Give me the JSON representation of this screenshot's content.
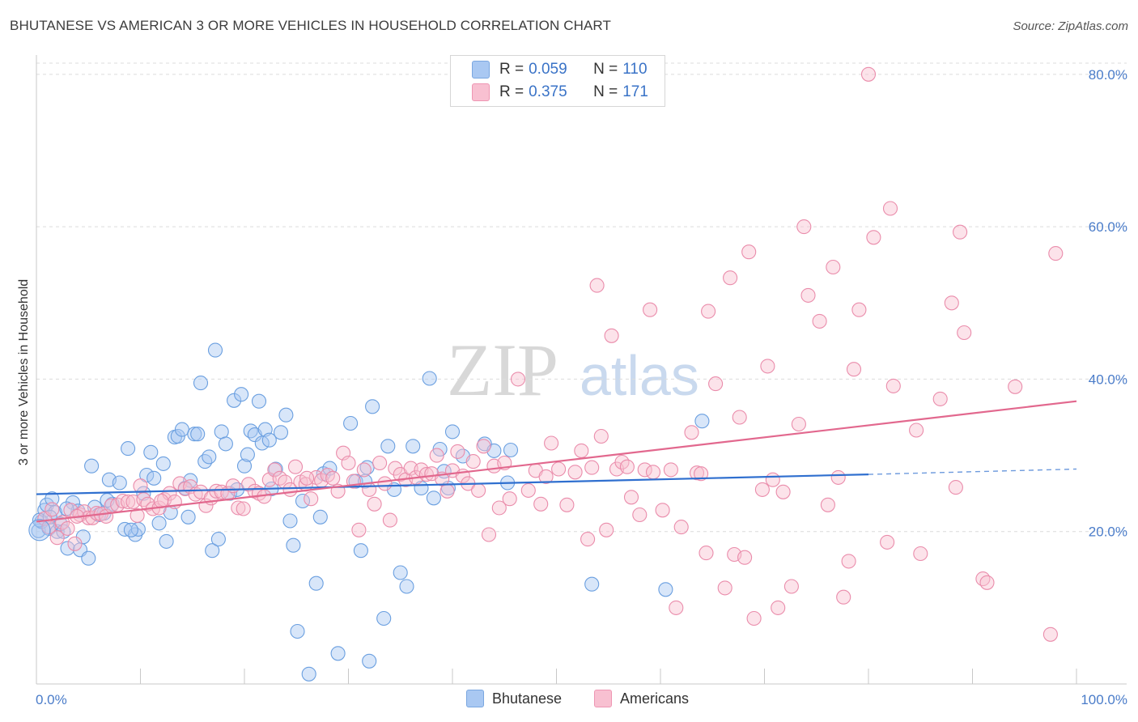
{
  "title": "BHUTANESE VS AMERICAN 3 OR MORE VEHICLES IN HOUSEHOLD CORRELATION CHART",
  "source": "Source: ZipAtlas.com",
  "watermark": {
    "zip": "ZIP",
    "atlas": "atlas"
  },
  "legend": {
    "rows": [
      {
        "r_label": "R =",
        "r": "0.059",
        "n_label": "N =",
        "n": "110",
        "fill": "#a9c8f2",
        "stroke": "#7aa7e0"
      },
      {
        "r_label": "R =",
        "r": "0.375",
        "n_label": "N =",
        "n": "171",
        "fill": "#f8c0d1",
        "stroke": "#ee96b3"
      }
    ]
  },
  "bottom_legend": [
    "Bhutanese",
    "Americans"
  ],
  "chart_data": {
    "type": "scatter",
    "title": "BHUTANESE VS AMERICAN 3 OR MORE VEHICLES IN HOUSEHOLD CORRELATION CHART",
    "xlabel": "",
    "ylabel": "3 or more Vehicles in Household",
    "xlim": [
      0,
      100
    ],
    "ylim": [
      0,
      82
    ],
    "x_tick_labels": [
      {
        "value": 0,
        "label": "0.0%"
      },
      {
        "value": 100,
        "label": "100.0%"
      }
    ],
    "y_tick_labels": [
      {
        "value": 20,
        "label": "20.0%"
      },
      {
        "value": 40,
        "label": "40.0%"
      },
      {
        "value": 60,
        "label": "60.0%"
      },
      {
        "value": 80,
        "label": "80.0%"
      }
    ],
    "grid": "horizontal dashed",
    "legend_position": "top-center",
    "series": [
      {
        "name": "Bhutanese",
        "color": "#6a9fe0",
        "fill": "#a9c8f2",
        "trend": {
          "x0": 0,
          "y0": 24.9,
          "x1": 80,
          "y1": 27.5,
          "dash_to_x": 100,
          "dash_to_y": 28.2,
          "color": "#2f6fcf"
        },
        "points": [
          [
            0.2,
            20.1
          ],
          [
            0.5,
            21.3
          ],
          [
            0.8,
            22.8
          ],
          [
            1.0,
            23.5
          ],
          [
            1.2,
            20.4
          ],
          [
            1.5,
            24.3
          ],
          [
            1.8,
            22.5
          ],
          [
            2.0,
            20.0
          ],
          [
            2.3,
            21.0
          ],
          [
            2.6,
            20.0
          ],
          [
            3.0,
            17.8
          ],
          [
            3.5,
            23.8
          ],
          [
            4.0,
            22.7
          ],
          [
            4.2,
            17.6
          ],
          [
            4.5,
            19.3
          ],
          [
            5.0,
            16.5
          ],
          [
            5.3,
            28.6
          ],
          [
            5.6,
            23.2
          ],
          [
            6.0,
            22.2
          ],
          [
            6.5,
            22.4
          ],
          [
            7.0,
            26.8
          ],
          [
            7.3,
            23.6
          ],
          [
            8.0,
            26.4
          ],
          [
            8.5,
            20.3
          ],
          [
            8.8,
            30.9
          ],
          [
            9.5,
            19.6
          ],
          [
            9.8,
            20.3
          ],
          [
            10.3,
            25.0
          ],
          [
            10.6,
            27.4
          ],
          [
            11.0,
            30.4
          ],
          [
            11.3,
            27.0
          ],
          [
            11.8,
            21.1
          ],
          [
            12.2,
            28.9
          ],
          [
            12.5,
            18.7
          ],
          [
            12.9,
            22.5
          ],
          [
            13.3,
            32.4
          ],
          [
            13.6,
            32.5
          ],
          [
            14.0,
            33.4
          ],
          [
            14.3,
            25.7
          ],
          [
            14.6,
            21.9
          ],
          [
            15.2,
            32.8
          ],
          [
            15.5,
            32.8
          ],
          [
            15.8,
            39.5
          ],
          [
            16.2,
            29.2
          ],
          [
            16.6,
            29.8
          ],
          [
            16.9,
            17.5
          ],
          [
            17.2,
            43.8
          ],
          [
            17.5,
            19.0
          ],
          [
            17.8,
            33.1
          ],
          [
            18.2,
            31.5
          ],
          [
            18.6,
            25.0
          ],
          [
            19.0,
            37.2
          ],
          [
            19.3,
            25.5
          ],
          [
            19.7,
            38.0
          ],
          [
            20.0,
            28.6
          ],
          [
            20.3,
            30.1
          ],
          [
            20.6,
            33.2
          ],
          [
            21.0,
            32.7
          ],
          [
            21.4,
            37.1
          ],
          [
            21.7,
            31.6
          ],
          [
            22.0,
            33.4
          ],
          [
            22.4,
            32.0
          ],
          [
            22.6,
            25.6
          ],
          [
            23.0,
            28.2
          ],
          [
            23.5,
            33.0
          ],
          [
            24.0,
            35.3
          ],
          [
            24.4,
            21.4
          ],
          [
            24.7,
            18.2
          ],
          [
            25.1,
            6.9
          ],
          [
            25.6,
            24.0
          ],
          [
            26.2,
            1.3
          ],
          [
            26.9,
            13.2
          ],
          [
            27.3,
            21.9
          ],
          [
            27.6,
            27.6
          ],
          [
            28.2,
            28.3
          ],
          [
            29.0,
            4.0
          ],
          [
            30.2,
            34.2
          ],
          [
            30.7,
            26.6
          ],
          [
            31.2,
            17.5
          ],
          [
            31.6,
            26.6
          ],
          [
            32.0,
            3.0
          ],
          [
            32.3,
            36.4
          ],
          [
            33.4,
            8.6
          ],
          [
            33.8,
            31.2
          ],
          [
            34.4,
            25.5
          ],
          [
            35.0,
            14.6
          ],
          [
            35.6,
            12.8
          ],
          [
            36.2,
            31.2
          ],
          [
            37.0,
            25.7
          ],
          [
            37.8,
            40.1
          ],
          [
            38.2,
            24.4
          ],
          [
            38.8,
            30.8
          ],
          [
            39.2,
            27.9
          ],
          [
            39.6,
            25.7
          ],
          [
            40.0,
            33.1
          ],
          [
            41.0,
            29.9
          ],
          [
            43.1,
            31.5
          ],
          [
            44.0,
            30.6
          ],
          [
            45.3,
            26.4
          ],
          [
            45.6,
            30.7
          ],
          [
            53.4,
            13.1
          ],
          [
            60.5,
            12.4
          ],
          [
            64.0,
            34.5
          ],
          [
            0.3,
            21.5
          ],
          [
            1.3,
            21.9
          ],
          [
            2.9,
            23.0
          ],
          [
            6.8,
            24.1
          ],
          [
            9.1,
            20.2
          ],
          [
            14.8,
            26.7
          ],
          [
            31.8,
            28.4
          ]
        ]
      },
      {
        "name": "Americans",
        "color": "#ea8cab",
        "fill": "#f8c0d1",
        "trend": {
          "x0": 0,
          "y0": 21.3,
          "x1": 100,
          "y1": 37.1,
          "color": "#e2688e"
        },
        "points": [
          [
            0.8,
            21.7
          ],
          [
            1.5,
            22.9
          ],
          [
            2.0,
            19.2
          ],
          [
            2.5,
            21.2
          ],
          [
            3.0,
            20.4
          ],
          [
            3.3,
            22.8
          ],
          [
            3.7,
            18.4
          ],
          [
            4.2,
            22.2
          ],
          [
            4.6,
            22.6
          ],
          [
            5.0,
            21.8
          ],
          [
            5.4,
            21.8
          ],
          [
            5.8,
            22.4
          ],
          [
            6.2,
            22.3
          ],
          [
            6.7,
            22.0
          ],
          [
            7.2,
            23.4
          ],
          [
            7.8,
            23.5
          ],
          [
            8.3,
            24.0
          ],
          [
            8.8,
            23.9
          ],
          [
            9.3,
            23.9
          ],
          [
            9.7,
            22.1
          ],
          [
            10.3,
            24.2
          ],
          [
            10.7,
            23.6
          ],
          [
            11.2,
            23.0
          ],
          [
            11.8,
            23.1
          ],
          [
            12.3,
            24.2
          ],
          [
            12.8,
            25.0
          ],
          [
            13.3,
            23.9
          ],
          [
            13.8,
            26.3
          ],
          [
            14.3,
            25.6
          ],
          [
            14.8,
            25.9
          ],
          [
            15.3,
            24.9
          ],
          [
            15.8,
            25.2
          ],
          [
            16.3,
            23.4
          ],
          [
            16.8,
            24.4
          ],
          [
            17.3,
            25.3
          ],
          [
            17.8,
            25.2
          ],
          [
            18.4,
            25.0
          ],
          [
            18.9,
            26.0
          ],
          [
            19.4,
            23.1
          ],
          [
            19.9,
            23.0
          ],
          [
            20.4,
            26.2
          ],
          [
            21.0,
            25.3
          ],
          [
            21.4,
            25.0
          ],
          [
            21.9,
            24.6
          ],
          [
            22.4,
            26.8
          ],
          [
            22.9,
            28.1
          ],
          [
            23.4,
            27.0
          ],
          [
            23.9,
            26.5
          ],
          [
            24.4,
            25.5
          ],
          [
            24.9,
            28.5
          ],
          [
            25.4,
            26.5
          ],
          [
            25.9,
            26.2
          ],
          [
            26.4,
            24.3
          ],
          [
            26.9,
            27.1
          ],
          [
            27.4,
            26.7
          ],
          [
            28.0,
            27.4
          ],
          [
            28.5,
            27.0
          ],
          [
            29.0,
            25.3
          ],
          [
            29.5,
            30.3
          ],
          [
            30.0,
            29.0
          ],
          [
            30.5,
            26.6
          ],
          [
            31.0,
            20.2
          ],
          [
            31.5,
            28.1
          ],
          [
            32.0,
            25.5
          ],
          [
            32.5,
            23.6
          ],
          [
            33.0,
            29.0
          ],
          [
            33.5,
            26.3
          ],
          [
            34.0,
            21.5
          ],
          [
            34.5,
            28.3
          ],
          [
            35.0,
            27.5
          ],
          [
            35.5,
            26.8
          ],
          [
            36.0,
            28.3
          ],
          [
            36.5,
            27.1
          ],
          [
            37.0,
            28.1
          ],
          [
            37.5,
            27.5
          ],
          [
            38.0,
            27.6
          ],
          [
            38.5,
            30.0
          ],
          [
            39.0,
            26.9
          ],
          [
            39.5,
            25.3
          ],
          [
            40.0,
            28.0
          ],
          [
            40.5,
            30.5
          ],
          [
            41.0,
            27.3
          ],
          [
            41.5,
            26.3
          ],
          [
            42.0,
            29.2
          ],
          [
            42.5,
            25.4
          ],
          [
            43.0,
            31.2
          ],
          [
            43.5,
            19.6
          ],
          [
            44.0,
            28.6
          ],
          [
            44.5,
            23.1
          ],
          [
            45.0,
            29.0
          ],
          [
            45.5,
            24.3
          ],
          [
            46.3,
            40.0
          ],
          [
            47.3,
            25.4
          ],
          [
            48.0,
            28.0
          ],
          [
            48.5,
            23.6
          ],
          [
            49.0,
            27.2
          ],
          [
            49.5,
            31.6
          ],
          [
            50.2,
            28.2
          ],
          [
            51.0,
            23.5
          ],
          [
            51.8,
            27.8
          ],
          [
            52.4,
            30.6
          ],
          [
            53.0,
            19.0
          ],
          [
            53.4,
            28.4
          ],
          [
            53.9,
            52.3
          ],
          [
            54.3,
            32.5
          ],
          [
            54.8,
            20.2
          ],
          [
            55.3,
            45.7
          ],
          [
            55.8,
            28.2
          ],
          [
            56.3,
            29.1
          ],
          [
            56.8,
            28.5
          ],
          [
            57.2,
            24.5
          ],
          [
            58.0,
            22.2
          ],
          [
            58.5,
            28.1
          ],
          [
            59.0,
            49.1
          ],
          [
            59.3,
            27.8
          ],
          [
            60.2,
            22.8
          ],
          [
            61.0,
            28.1
          ],
          [
            61.5,
            10.0
          ],
          [
            62.0,
            20.6
          ],
          [
            63.0,
            33.0
          ],
          [
            63.5,
            27.7
          ],
          [
            63.9,
            27.6
          ],
          [
            64.4,
            17.2
          ],
          [
            64.6,
            48.9
          ],
          [
            65.3,
            39.4
          ],
          [
            66.2,
            12.6
          ],
          [
            66.7,
            53.3
          ],
          [
            67.1,
            17.0
          ],
          [
            67.6,
            35.0
          ],
          [
            68.1,
            16.6
          ],
          [
            68.5,
            56.7
          ],
          [
            69.0,
            8.6
          ],
          [
            69.8,
            25.5
          ],
          [
            70.3,
            41.7
          ],
          [
            70.8,
            26.8
          ],
          [
            71.3,
            10.0
          ],
          [
            71.8,
            25.2
          ],
          [
            72.6,
            12.8
          ],
          [
            73.3,
            34.1
          ],
          [
            73.8,
            60.0
          ],
          [
            74.2,
            51.0
          ],
          [
            75.3,
            47.6
          ],
          [
            76.1,
            23.5
          ],
          [
            76.6,
            54.7
          ],
          [
            77.1,
            27.1
          ],
          [
            77.6,
            11.4
          ],
          [
            78.1,
            16.1
          ],
          [
            78.6,
            41.3
          ],
          [
            79.1,
            49.1
          ],
          [
            80.0,
            80.0
          ],
          [
            80.5,
            58.6
          ],
          [
            81.8,
            18.6
          ],
          [
            82.1,
            62.4
          ],
          [
            82.4,
            39.1
          ],
          [
            84.6,
            33.3
          ],
          [
            85.0,
            17.1
          ],
          [
            86.9,
            37.4
          ],
          [
            88.0,
            50.0
          ],
          [
            88.4,
            25.8
          ],
          [
            88.8,
            59.3
          ],
          [
            89.2,
            46.1
          ],
          [
            91.0,
            13.8
          ],
          [
            91.4,
            13.3
          ],
          [
            94.1,
            39.0
          ],
          [
            97.5,
            6.5
          ],
          [
            98.0,
            56.5
          ],
          [
            1.2,
            20.6
          ],
          [
            3.9,
            22.0
          ],
          [
            10.0,
            26.0
          ],
          [
            26.0,
            27.0
          ],
          [
            12.0,
            24.0
          ]
        ]
      }
    ]
  }
}
